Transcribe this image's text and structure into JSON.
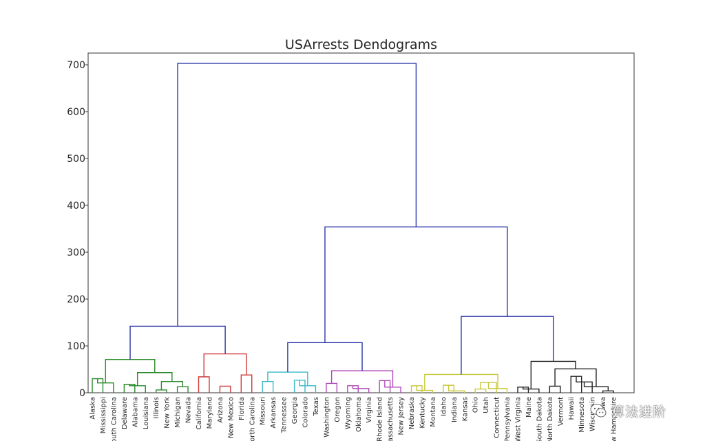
{
  "chart_data": {
    "type": "dendrogram",
    "title": "USArrests Dendograms",
    "ylim": [
      0,
      725
    ],
    "yticks": [
      0,
      100,
      200,
      300,
      400,
      500,
      600,
      700
    ],
    "grid": false,
    "leaves": [
      "Alaska",
      "Mississippi",
      "South Carolina",
      "Delaware",
      "Alabama",
      "Louisiana",
      "Illinois",
      "New York",
      "Michigan",
      "Nevada",
      "California",
      "Maryland",
      "Arizona",
      "New Mexico",
      "Florida",
      "North Carolina",
      "Missouri",
      "Arkansas",
      "Tennessee",
      "Georgia",
      "Colorado",
      "Texas",
      "Washington",
      "Oregon",
      "Wyoming",
      "Oklahoma",
      "Virginia",
      "Rhode Island",
      "Massachusetts",
      "New Jersey",
      "Nebraska",
      "Kentucky",
      "Montana",
      "Idaho",
      "Indiana",
      "Kansas",
      "Ohio",
      "Utah",
      "Connecticut",
      "Pennsylvania",
      "West Virginia",
      "Maine",
      "South Dakota",
      "North Dakota",
      "Vermont",
      "Hawaii",
      "Minnesota",
      "Wisconsin",
      "Iowa",
      "New Hampshire"
    ],
    "colors": {
      "root": "#2b36a8",
      "green": "#2a8a2a",
      "red": "#d03a3a",
      "cyan": "#3ab8c8",
      "magenta": "#b04ab8",
      "yellow": "#c8c83a",
      "black": "#222222",
      "axis": "#333333"
    },
    "merges": [
      {
        "left": "Alaska",
        "right": "Mississippi",
        "height": 30,
        "color": "green"
      },
      {
        "left": "Mississippi",
        "right": "South Carolina",
        "height": 21,
        "color": "green"
      },
      {
        "left": "Delaware",
        "right": "Alabama",
        "height": 18,
        "color": "green"
      },
      {
        "left": "Alabama",
        "right": "Louisiana",
        "height": 15,
        "color": "green"
      },
      {
        "left": "Illinois",
        "right": "New York",
        "height": 6,
        "color": "green"
      },
      {
        "left": "Michigan",
        "right": "Nevada",
        "height": 13,
        "color": "green"
      },
      {
        "left": "Illinois/New York",
        "right": "Michigan/Nevada",
        "height": 24,
        "color": "green"
      },
      {
        "left": "Delaware/Alabama/Louisiana",
        "right": "Illinois/New York/Michigan/Nevada",
        "height": 43,
        "color": "green"
      },
      {
        "left": "Alaska/Mississippi/South Carolina",
        "right": "Delaware..Nevada",
        "height": 71,
        "color": "green"
      },
      {
        "left": "California",
        "right": "Maryland",
        "height": 34,
        "color": "red"
      },
      {
        "left": "Arizona",
        "right": "New Mexico",
        "height": 14,
        "color": "red"
      },
      {
        "left": "Florida",
        "right": "North Carolina",
        "height": 38,
        "color": "red"
      },
      {
        "left": "California..New Mexico",
        "right": "Florida/North Carolina",
        "height": 83,
        "color": "red"
      },
      {
        "left": "Alaska..Nevada",
        "right": "California..North Carolina",
        "height": 142,
        "color": "root"
      },
      {
        "left": "Missouri",
        "right": "Arkansas",
        "height": 24,
        "color": "cyan"
      },
      {
        "left": "Georgia",
        "right": "Colorado",
        "height": 27,
        "color": "cyan"
      },
      {
        "left": "Colorado",
        "right": "Texas",
        "height": 15,
        "color": "cyan"
      },
      {
        "left": "Missouri..Tennessee",
        "right": "Georgia..Texas",
        "height": 44,
        "color": "cyan"
      },
      {
        "left": "Washington",
        "right": "Oregon",
        "height": 20,
        "color": "magenta"
      },
      {
        "left": "Wyoming",
        "right": "Oklahoma",
        "height": 15,
        "color": "magenta"
      },
      {
        "left": "Oklahoma",
        "right": "Virginia",
        "height": 9,
        "color": "magenta"
      },
      {
        "left": "Rhode Island",
        "right": "Massachusetts",
        "height": 26,
        "color": "magenta"
      },
      {
        "left": "Massachusetts",
        "right": "New Jersey",
        "height": 12,
        "color": "magenta"
      },
      {
        "left": "Washington..Virginia",
        "right": "Rhode Island..New Jersey",
        "height": 47,
        "color": "magenta"
      },
      {
        "left": "Missouri..Texas",
        "right": "Washington..New Jersey",
        "height": 107,
        "color": "root"
      },
      {
        "left": "Nebraska",
        "right": "Kentucky",
        "height": 15,
        "color": "yellow"
      },
      {
        "left": "Kentucky",
        "right": "Montana",
        "height": 5,
        "color": "yellow"
      },
      {
        "left": "Idaho",
        "right": "Indiana",
        "height": 16,
        "color": "yellow"
      },
      {
        "left": "Indiana",
        "right": "Kansas",
        "height": 4,
        "color": "yellow"
      },
      {
        "left": "Ohio",
        "right": "Utah",
        "height": 8,
        "color": "yellow"
      },
      {
        "left": "Ohio/Utah",
        "right": "Connecticut",
        "height": 22,
        "color": "yellow"
      },
      {
        "left": "Connecticut",
        "right": "Pennsylvania",
        "height": 9,
        "color": "yellow"
      },
      {
        "left": "Nebraska..Kansas",
        "right": "Ohio..Pennsylvania",
        "height": 39,
        "color": "yellow"
      },
      {
        "left": "West Virginia",
        "right": "Maine",
        "height": 12,
        "color": "black"
      },
      {
        "left": "Maine",
        "right": "South Dakota",
        "height": 8,
        "color": "black"
      },
      {
        "left": "North Dakota",
        "right": "Vermont",
        "height": 14,
        "color": "black"
      },
      {
        "left": "Hawaii",
        "right": "Minnesota",
        "height": 35,
        "color": "black"
      },
      {
        "left": "Minnesota",
        "right": "Wisconsin",
        "height": 23,
        "color": "black"
      },
      {
        "left": "Iowa",
        "right": "New Hampshire",
        "height": 4,
        "color": "black"
      },
      {
        "left": "Wisconsin",
        "right": "Iowa/New Hampshire",
        "height": 13,
        "color": "black"
      },
      {
        "left": "North Dakota/Vermont",
        "right": "Hawaii..New Hampshire",
        "height": 51,
        "color": "black"
      },
      {
        "left": "West Virginia..South Dakota",
        "right": "North Dakota..New Hampshire",
        "height": 67,
        "color": "black"
      },
      {
        "left": "Nebraska..Pennsylvania",
        "right": "West Virginia..New Hampshire",
        "height": 163,
        "color": "root"
      },
      {
        "left": "Missouri..New Jersey",
        "right": "Nebraska..New Hampshire",
        "height": 354,
        "color": "root"
      },
      {
        "left": "Alaska..North Carolina",
        "right": "Missouri..New Hampshire",
        "height": 703,
        "color": "root"
      }
    ]
  },
  "watermark": {
    "text": "算法进阶",
    "icon": "wechat-logo-icon"
  }
}
